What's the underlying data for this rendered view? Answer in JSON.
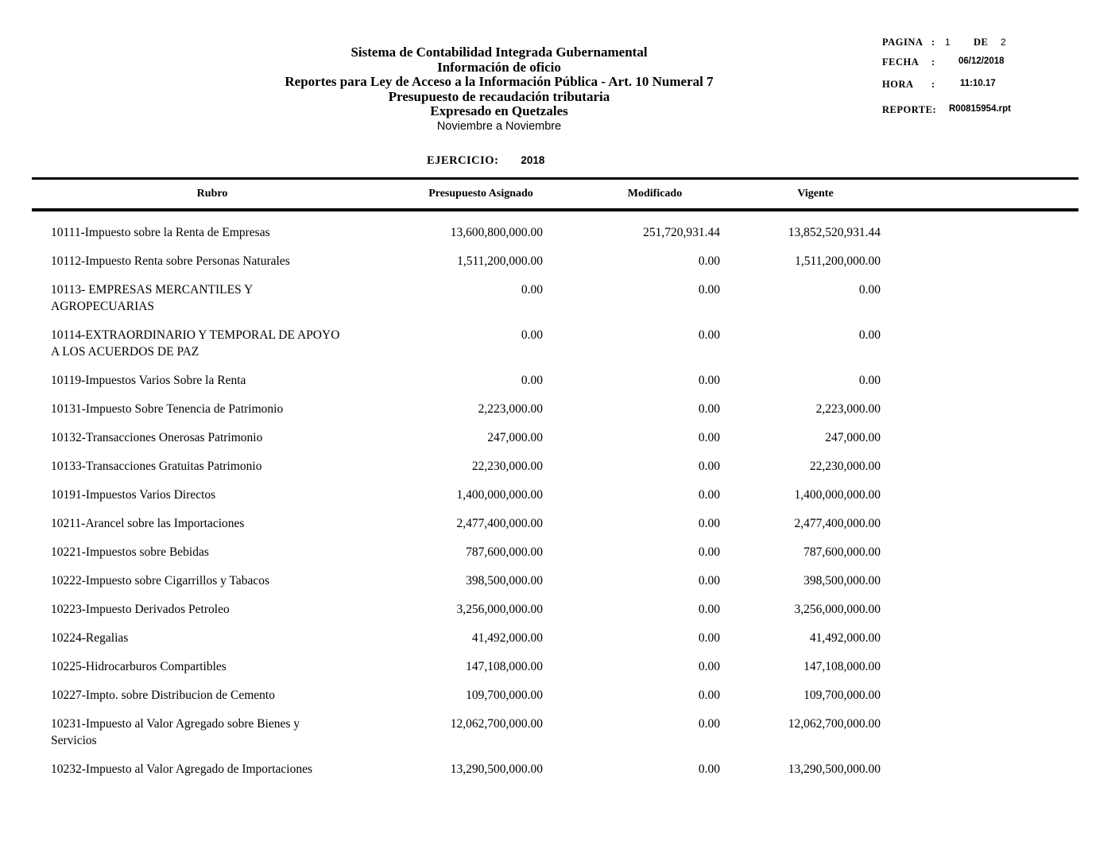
{
  "header": {
    "title_lines": [
      "Sistema de Contabilidad Integrada Gubernamental",
      "Información de oficio",
      "Reportes para Ley de Acceso a la Información Pública - Art. 10 Numeral 7",
      "Presupuesto de recaudación tributaria",
      "Expresado en Quetzales"
    ],
    "period": "Noviembre  a  Noviembre"
  },
  "meta": {
    "pagina_label": "PAGINA",
    "colon": ":",
    "pagina_value": "1",
    "de_label": "DE",
    "de_value": "2",
    "fecha_label": "FECHA",
    "fecha_value": "06/12/2018",
    "hora_label": "HORA",
    "hora_value": "11:10.17",
    "reporte_label": "REPORTE:",
    "reporte_value": "R00815954.rpt"
  },
  "ejercicio": {
    "label": "EJERCICIO:",
    "value": "2018"
  },
  "table": {
    "headers": {
      "rubro": "Rubro",
      "asignado": "Presupuesto Asignado",
      "modificado": "Modificado",
      "vigente": "Vigente"
    },
    "rows": [
      {
        "rubro": "10111-Impuesto sobre la Renta de Empresas",
        "asignado": "13,600,800,000.00",
        "modificado": "251,720,931.44",
        "vigente": "13,852,520,931.44"
      },
      {
        "rubro": "10112-Impuesto Renta sobre Personas Naturales",
        "asignado": "1,511,200,000.00",
        "modificado": "0.00",
        "vigente": "1,511,200,000.00"
      },
      {
        "rubro": "10113- EMPRESAS MERCANTILES Y\nAGROPECUARIAS",
        "asignado": "0.00",
        "modificado": "0.00",
        "vigente": "0.00"
      },
      {
        "rubro": "10114-EXTRAORDINARIO Y TEMPORAL DE APOYO\nA LOS ACUERDOS DE PAZ",
        "asignado": "0.00",
        "modificado": "0.00",
        "vigente": "0.00"
      },
      {
        "rubro": "10119-Impuestos Varios Sobre la Renta",
        "asignado": "0.00",
        "modificado": "0.00",
        "vigente": "0.00"
      },
      {
        "rubro": "10131-Impuesto Sobre Tenencia de Patrimonio",
        "asignado": "2,223,000.00",
        "modificado": "0.00",
        "vigente": "2,223,000.00"
      },
      {
        "rubro": "10132-Transacciones Onerosas Patrimonio",
        "asignado": "247,000.00",
        "modificado": "0.00",
        "vigente": "247,000.00"
      },
      {
        "rubro": "10133-Transacciones Gratuitas Patrimonio",
        "asignado": "22,230,000.00",
        "modificado": "0.00",
        "vigente": "22,230,000.00"
      },
      {
        "rubro": "10191-Impuestos Varios Directos",
        "asignado": "1,400,000,000.00",
        "modificado": "0.00",
        "vigente": "1,400,000,000.00"
      },
      {
        "rubro": "10211-Arancel sobre las Importaciones",
        "asignado": "2,477,400,000.00",
        "modificado": "0.00",
        "vigente": "2,477,400,000.00"
      },
      {
        "rubro": "10221-Impuestos sobre Bebidas",
        "asignado": "787,600,000.00",
        "modificado": "0.00",
        "vigente": "787,600,000.00"
      },
      {
        "rubro": "10222-Impuesto sobre Cigarrillos y Tabacos",
        "asignado": "398,500,000.00",
        "modificado": "0.00",
        "vigente": "398,500,000.00"
      },
      {
        "rubro": "10223-Impuesto Derivados Petroleo",
        "asignado": "3,256,000,000.00",
        "modificado": "0.00",
        "vigente": "3,256,000,000.00"
      },
      {
        "rubro": "10224-Regalias",
        "asignado": "41,492,000.00",
        "modificado": "0.00",
        "vigente": "41,492,000.00"
      },
      {
        "rubro": "10225-Hidrocarburos Compartibles",
        "asignado": "147,108,000.00",
        "modificado": "0.00",
        "vigente": "147,108,000.00"
      },
      {
        "rubro": "10227-Impto. sobre Distribucion de Cemento",
        "asignado": "109,700,000.00",
        "modificado": "0.00",
        "vigente": "109,700,000.00"
      },
      {
        "rubro": "10231-Impuesto al Valor Agregado sobre Bienes y\nServicios",
        "asignado": "12,062,700,000.00",
        "modificado": "0.00",
        "vigente": "12,062,700,000.00"
      },
      {
        "rubro": "10232-Impuesto al Valor Agregado de Importaciones",
        "asignado": "13,290,500,000.00",
        "modificado": "0.00",
        "vigente": "13,290,500,000.00"
      }
    ]
  }
}
